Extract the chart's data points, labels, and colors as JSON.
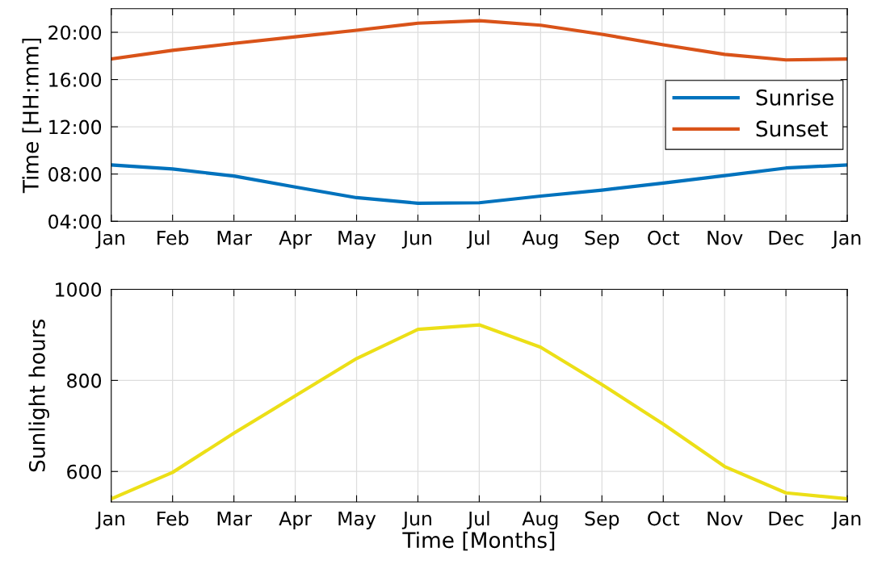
{
  "chart_data": [
    {
      "type": "line",
      "ylabel": "Time [HH:mm]",
      "categories": [
        "Jan",
        "Feb",
        "Mar",
        "Apr",
        "May",
        "Jun",
        "Jul",
        "Aug",
        "Sep",
        "Oct",
        "Nov",
        "Dec",
        "Jan"
      ],
      "ylim": [
        4,
        22
      ],
      "yticks": [
        {
          "value": 4,
          "label": "04:00"
        },
        {
          "value": 8,
          "label": "08:00"
        },
        {
          "value": 12,
          "label": "12:00"
        },
        {
          "value": 16,
          "label": "16:00"
        },
        {
          "value": 20,
          "label": "20:00"
        }
      ],
      "grid": true,
      "legend": "right",
      "marker": "none",
      "line_style": "solid",
      "series": [
        {
          "name": "Sunrise",
          "color": "#0072bd",
          "values": [
            8.77,
            8.43,
            7.83,
            6.9,
            6.0,
            5.53,
            5.57,
            6.13,
            6.64,
            7.23,
            7.87,
            8.51,
            8.77
          ]
        },
        {
          "name": "Sunset",
          "color": "#d95319",
          "values": [
            17.74,
            18.47,
            19.06,
            19.62,
            20.17,
            20.77,
            20.98,
            20.6,
            19.83,
            18.94,
            18.13,
            17.66,
            17.74
          ]
        }
      ]
    },
    {
      "type": "line",
      "ylabel": "Sunlight hours",
      "xlabel": "Time [Months]",
      "categories": [
        "Jan",
        "Feb",
        "Mar",
        "Apr",
        "May",
        "Jun",
        "Jul",
        "Aug",
        "Sep",
        "Oct",
        "Nov",
        "Dec",
        "Jan"
      ],
      "ylim": [
        533,
        1000
      ],
      "yticks": [
        600,
        800,
        1000
      ],
      "grid": true,
      "marker": "none",
      "line_style": "solid",
      "series": [
        {
          "color": "#ecdf17",
          "values": [
            540,
            598,
            684,
            766,
            848,
            912,
            922,
            873,
            791,
            704,
            611,
            553,
            540
          ]
        }
      ]
    }
  ]
}
